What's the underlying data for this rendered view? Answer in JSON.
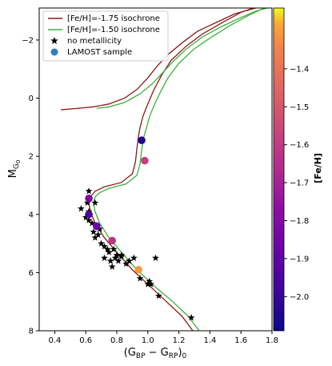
{
  "chart_data": {
    "type": "scatter",
    "title": "",
    "xlabel_main": "(G",
    "xlabel_sub1": "BP",
    "xlabel_mid": " − G",
    "xlabel_sub2": "RP",
    "xlabel_end": ")",
    "xlabel_sub3": "0",
    "ylabel_main": "M",
    "ylabel_sub1": "G",
    "ylabel_sub2": "0",
    "xlim": [
      0.3,
      1.8
    ],
    "ylim": [
      8,
      -3.1
    ],
    "y_inverted": true,
    "x_ticks": [
      0.4,
      0.6,
      0.8,
      1.0,
      1.2,
      1.4,
      1.6,
      1.8
    ],
    "x_tick_labels": [
      "0.4",
      "0.6",
      "0.8",
      "1.0",
      "1.2",
      "1.4",
      "1.6",
      "1.8"
    ],
    "y_ticks": [
      -2,
      0,
      2,
      4,
      6,
      8
    ],
    "y_tick_labels": [
      "−2",
      "0",
      "2",
      "4",
      "6",
      "8"
    ],
    "legend_placement": "top-left",
    "legend": [
      {
        "label": "[Fe/H]=-1.75 isochrone",
        "kind": "line",
        "color": "#8b1a1a"
      },
      {
        "label": "[Fe/H]=-1.50 isochrone",
        "kind": "line",
        "color": "#3cb03c"
      },
      {
        "label": "no metallicity",
        "kind": "star",
        "color": "#000000"
      },
      {
        "label": "LAMOST sample",
        "kind": "circle",
        "color": "#2e7fb8"
      }
    ],
    "colorbar": {
      "label": "[Fe/H]",
      "range": [
        -2.09,
        -1.24
      ],
      "ticks": [
        -2.0,
        -1.9,
        -1.8,
        -1.7,
        -1.6,
        -1.5,
        -1.4
      ],
      "tick_labels": [
        "−2.0",
        "−1.9",
        "−1.8",
        "−1.7",
        "−1.6",
        "−1.5",
        "−1.4"
      ],
      "colormap": "plasma"
    },
    "series": [
      {
        "name": "[Fe/H]=-1.75 isochrone",
        "kind": "line",
        "color": "#8b1a1a",
        "x": [
          1.29,
          1.22,
          1.12,
          1.02,
          0.9,
          0.8,
          0.72,
          0.66,
          0.63,
          0.62,
          0.63,
          0.66,
          0.72,
          0.83,
          0.9,
          0.92,
          0.93,
          0.94,
          0.95,
          0.97,
          1.0,
          1.04,
          1.09,
          1.15,
          1.25,
          1.35,
          1.48,
          1.6,
          1.73
        ],
        "y": [
          8.0,
          7.5,
          7.0,
          6.5,
          5.9,
          5.3,
          4.8,
          4.3,
          3.9,
          3.6,
          3.4,
          3.2,
          3.05,
          2.9,
          2.6,
          2.2,
          1.7,
          1.3,
          1.0,
          0.6,
          0.2,
          -0.3,
          -0.8,
          -1.3,
          -1.8,
          -2.2,
          -2.6,
          -2.95,
          -3.2
        ]
      },
      {
        "name": "[Fe/H]=-1.75 isochrone (subgiant/HB branch)",
        "kind": "line",
        "color": "#8b1a1a",
        "x": [
          0.44,
          0.55,
          0.65,
          0.75,
          0.85,
          0.93,
          1.0,
          1.06,
          1.13,
          1.22,
          1.32,
          1.44,
          1.56,
          1.66,
          1.73
        ],
        "y": [
          0.4,
          0.35,
          0.3,
          0.2,
          0.0,
          -0.3,
          -0.7,
          -1.1,
          -1.5,
          -1.9,
          -2.3,
          -2.6,
          -2.9,
          -3.05,
          -3.15
        ]
      },
      {
        "name": "[Fe/H]=-1.50 isochrone",
        "kind": "line",
        "color": "#3cb03c",
        "x": [
          1.33,
          1.26,
          1.16,
          1.05,
          0.93,
          0.83,
          0.75,
          0.69,
          0.66,
          0.65,
          0.66,
          0.69,
          0.75,
          0.86,
          0.93,
          0.95,
          0.96,
          0.97,
          0.99,
          1.01,
          1.04,
          1.08,
          1.13,
          1.2,
          1.3,
          1.41,
          1.53,
          1.65,
          1.77
        ],
        "y": [
          8.0,
          7.5,
          7.0,
          6.5,
          5.9,
          5.3,
          4.8,
          4.3,
          3.9,
          3.6,
          3.4,
          3.25,
          3.1,
          2.95,
          2.65,
          2.25,
          1.8,
          1.4,
          1.05,
          0.65,
          0.25,
          -0.2,
          -0.7,
          -1.2,
          -1.7,
          -2.1,
          -2.5,
          -2.85,
          -3.15
        ]
      },
      {
        "name": "[Fe/H]=-1.50 isochrone (subgiant/HB branch)",
        "kind": "line",
        "color": "#3cb03c",
        "x": [
          0.67,
          0.75,
          0.85,
          0.95,
          1.03,
          1.1,
          1.17,
          1.25,
          1.35,
          1.47,
          1.59,
          1.7,
          1.77
        ],
        "y": [
          0.35,
          0.3,
          0.15,
          -0.15,
          -0.5,
          -0.9,
          -1.3,
          -1.7,
          -2.1,
          -2.45,
          -2.75,
          -3.0,
          -3.1
        ]
      },
      {
        "name": "no metallicity",
        "kind": "star",
        "color": "#000000",
        "x": [
          0.62,
          0.57,
          0.61,
          0.66,
          0.6,
          0.62,
          0.64,
          0.67,
          0.62,
          0.65,
          0.68,
          0.66,
          0.69,
          0.7,
          0.72,
          0.74,
          0.75,
          0.78,
          0.72,
          0.76,
          0.79,
          0.8,
          0.81,
          0.83,
          0.77,
          0.86,
          0.88,
          0.91,
          0.83,
          0.95,
          1.01,
          1.0,
          1.02,
          1.07,
          1.05,
          1.28
        ],
        "y": [
          3.2,
          3.8,
          3.6,
          3.6,
          4.1,
          4.2,
          4.3,
          4.4,
          3.9,
          4.6,
          4.7,
          4.8,
          4.5,
          5.0,
          5.1,
          5.2,
          5.3,
          5.2,
          5.5,
          5.6,
          5.5,
          5.4,
          5.6,
          5.45,
          5.8,
          5.7,
          5.6,
          5.5,
          5.4,
          6.2,
          6.3,
          6.4,
          6.4,
          6.8,
          5.5,
          7.55
        ]
      }
    ],
    "lamost_sample": {
      "name": "LAMOST sample",
      "x": [
        0.96,
        0.98,
        0.62,
        0.62,
        0.67,
        0.77,
        0.94
      ],
      "y": [
        1.45,
        2.15,
        3.45,
        4.0,
        4.4,
        4.9,
        5.9
      ],
      "feh": [
        -2.05,
        -1.58,
        -1.82,
        -1.95,
        -1.88,
        -1.62,
        -1.3
      ]
    }
  }
}
